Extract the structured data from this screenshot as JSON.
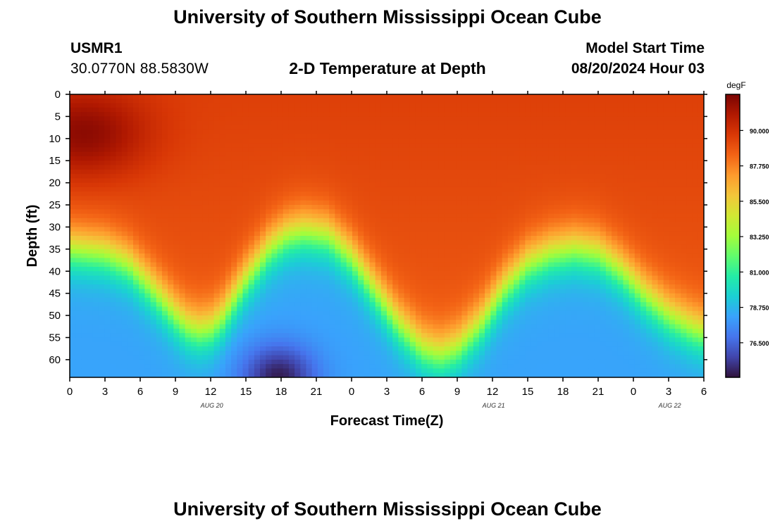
{
  "page": {
    "title_top": "University of Southern Mississippi Ocean Cube",
    "title_bottom": "University of Southern Mississippi Ocean Cube",
    "station_id": "USMR1",
    "coords": "30.0770N  88.5830W",
    "subtitle": "2-D Temperature at Depth",
    "model_label": "Model Start Time",
    "model_time": "08/20/2024 Hour 03"
  },
  "chart_data": {
    "type": "heatmap",
    "title": "2-D Temperature at Depth",
    "xlabel": "Forecast Time(Z)",
    "ylabel": "Depth (ft)",
    "x_range_hours": [
      0,
      54
    ],
    "y_range_ft": [
      0,
      64
    ],
    "x_ticks": [
      {
        "h": 0,
        "label": "0"
      },
      {
        "h": 3,
        "label": "3"
      },
      {
        "h": 6,
        "label": "6"
      },
      {
        "h": 9,
        "label": "9"
      },
      {
        "h": 12,
        "label": "12"
      },
      {
        "h": 15,
        "label": "15"
      },
      {
        "h": 18,
        "label": "18"
      },
      {
        "h": 21,
        "label": "21"
      },
      {
        "h": 24,
        "label": "0"
      },
      {
        "h": 27,
        "label": "3"
      },
      {
        "h": 30,
        "label": "6"
      },
      {
        "h": 33,
        "label": "9"
      },
      {
        "h": 36,
        "label": "12"
      },
      {
        "h": 39,
        "label": "15"
      },
      {
        "h": 42,
        "label": "18"
      },
      {
        "h": 45,
        "label": "21"
      },
      {
        "h": 48,
        "label": "0"
      },
      {
        "h": 51,
        "label": "3"
      },
      {
        "h": 54,
        "label": "6"
      }
    ],
    "y_ticks": [
      0,
      5,
      10,
      15,
      20,
      25,
      30,
      35,
      40,
      45,
      50,
      55,
      60
    ],
    "date_labels": [
      {
        "h": 12.1,
        "label": "AUG 20"
      },
      {
        "h": 36.1,
        "label": "AUG 21"
      },
      {
        "h": 51.1,
        "label": "AUG 22"
      }
    ],
    "colorbar": {
      "unit": "degF",
      "min": 74.3,
      "max": 92.3,
      "ticks": [
        {
          "v": 90.0,
          "label": "90.000"
        },
        {
          "v": 87.75,
          "label": "87.750"
        },
        {
          "v": 85.5,
          "label": "85.500"
        },
        {
          "v": 83.25,
          "label": "83.250"
        },
        {
          "v": 81.0,
          "label": "81.000"
        },
        {
          "v": 78.75,
          "label": "78.750"
        },
        {
          "v": 76.5,
          "label": "76.500"
        }
      ],
      "stops": [
        "#30123b",
        "#4145ab",
        "#4675ed",
        "#39a2fc",
        "#1bcfd4",
        "#24eca6",
        "#61fc6c",
        "#a4fc3b",
        "#d1e834",
        "#f3c63a",
        "#fe9b2d",
        "#f36315",
        "#d93806",
        "#b11901",
        "#7a0403"
      ]
    },
    "thermocline_depth_ft_by_hour": [
      [
        0,
        35
      ],
      [
        3,
        36
      ],
      [
        5,
        38.5
      ],
      [
        7,
        44
      ],
      [
        9,
        50
      ],
      [
        10,
        52.5
      ],
      [
        11,
        53.5
      ],
      [
        12,
        53
      ],
      [
        13,
        50.5
      ],
      [
        15,
        42
      ],
      [
        17,
        35
      ],
      [
        18.5,
        32
      ],
      [
        20,
        31
      ],
      [
        22,
        32
      ],
      [
        24,
        37
      ],
      [
        26,
        44.5
      ],
      [
        28,
        52
      ],
      [
        30,
        57.5
      ],
      [
        31.5,
        59
      ],
      [
        33,
        57.5
      ],
      [
        35,
        52
      ],
      [
        37,
        44
      ],
      [
        39,
        38.5
      ],
      [
        41,
        36
      ],
      [
        43,
        35
      ],
      [
        45,
        36
      ],
      [
        47,
        40
      ],
      [
        49,
        45.5
      ],
      [
        51,
        50
      ],
      [
        53,
        53
      ],
      [
        54,
        54
      ]
    ],
    "surface_temp_degF": 89.5,
    "bottom_temp_degF": 78.2,
    "warm_core": {
      "x_hour": 1.2,
      "depth_ft": 9,
      "degF": 92.0
    },
    "cold_core": {
      "x_hour": 17.8,
      "depth_ft": 64,
      "degF": 74.6
    }
  }
}
